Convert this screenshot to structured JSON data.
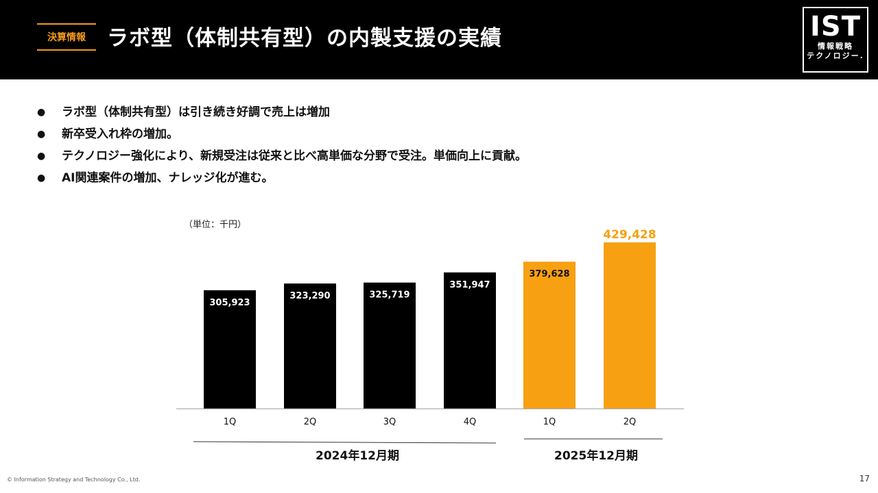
{
  "header": {
    "tag": "決算情報",
    "title": "ラボ型（体制共有型）の内製支援の実績",
    "logo_main": "IST",
    "logo_sub1": "情報戦略",
    "logo_sub2": "テクノロジー."
  },
  "bullets": [
    "ラボ型（体制共有型）は引き続き好調で売上は増加",
    "新卒受入れ枠の増加。",
    "テクノロジー強化により、新規受注は従来と比べ高単価な分野で受注。単価向上に貢献。",
    "AI関連案件の増加、ナレッジ化が進む。"
  ],
  "bullet_symbol": "●",
  "chart_data": {
    "type": "bar",
    "unit_label": "（単位：千円）",
    "categories": [
      "1Q",
      "2Q",
      "3Q",
      "4Q",
      "1Q",
      "2Q"
    ],
    "values": [
      305923,
      323290,
      325719,
      351947,
      379628,
      429428
    ],
    "value_labels": [
      "305,923",
      "323,290",
      "325,719",
      "351,947",
      "379,628",
      "429,428"
    ],
    "groups": [
      {
        "label": "2024年12月期",
        "color": "#000000"
      },
      {
        "label": "2025年12月期",
        "color": "#f7a012"
      }
    ],
    "bar_group": [
      0,
      0,
      0,
      0,
      1,
      1
    ],
    "colors": {
      "black": "#000000",
      "orange": "#f7a012",
      "axis": "#999999"
    }
  },
  "footer": {
    "copyright": "© Information Strategy and Technology Co., Ltd.",
    "page": "17"
  }
}
